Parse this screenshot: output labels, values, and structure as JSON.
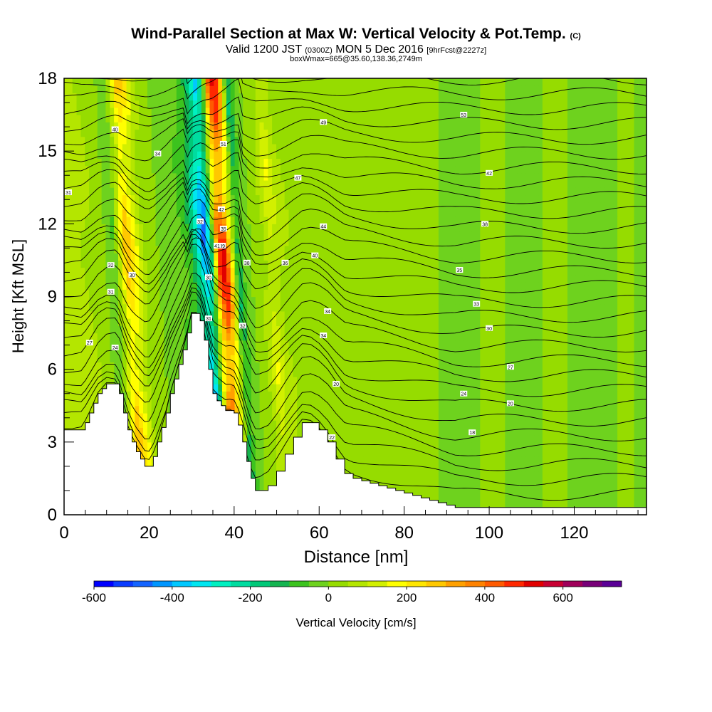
{
  "chart_data": {
    "type": "heatmap",
    "title": "Wind-Parallel Section at Max W: Vertical Velocity & Pot.Temp.",
    "title_mark": "(C)",
    "subtitle_parts": [
      "Valid 1200 JST",
      "(0300Z)",
      "MON 5 Dec 2016",
      "[9hrFcst@2227z]"
    ],
    "subtitle2": "boxWmax=665@35.60,138.36,2749m",
    "xlabel": "Distance [nm]",
    "ylabel": "Height [Kft MSL]",
    "xlim": [
      0,
      137
    ],
    "ylim": [
      0,
      18
    ],
    "x_ticks": [
      0,
      20,
      40,
      60,
      80,
      100,
      120
    ],
    "y_ticks": [
      0,
      3,
      6,
      9,
      12,
      15,
      18
    ],
    "grid": false,
    "colorbar": {
      "label": "Vertical Velocity [cm/s]",
      "tick_labels": [
        -600,
        -400,
        -200,
        0,
        200,
        400,
        600
      ],
      "range": [
        -600,
        750
      ],
      "step": 50,
      "colors": [
        "#0000ff",
        "#0a3cff",
        "#1464ff",
        "#0096ff",
        "#00c8ff",
        "#00e6f0",
        "#00f0c0",
        "#00dca0",
        "#00c878",
        "#14b450",
        "#3cc31e",
        "#6ed21e",
        "#96dc00",
        "#b4e600",
        "#d2f000",
        "#ffff00",
        "#ffe600",
        "#ffc800",
        "#ffa000",
        "#ff8200",
        "#ff5a00",
        "#ff2800",
        "#e10000",
        "#c80032",
        "#a0005a",
        "#780078",
        "#5a0096"
      ]
    },
    "velocity_columns": [
      {
        "x": 4,
        "w": 100
      },
      {
        "x": 10,
        "w": 0
      },
      {
        "x": 12,
        "w": -60
      },
      {
        "x": 15,
        "w": 320
      },
      {
        "x": 17,
        "w": 200
      },
      {
        "x": 19,
        "w": 60
      },
      {
        "x": 23,
        "w": -10
      },
      {
        "x": 27,
        "w": -40
      },
      {
        "x": 30,
        "w": -120
      },
      {
        "x": 32,
        "w": -330
      },
      {
        "x": 33.5,
        "w": -500
      },
      {
        "x": 35,
        "w": -180
      },
      {
        "x": 36.5,
        "w": 450
      },
      {
        "x": 38,
        "w": 560
      },
      {
        "x": 39.5,
        "w": 250
      },
      {
        "x": 41,
        "w": -160
      },
      {
        "x": 43,
        "w": -20
      },
      {
        "x": 46,
        "w": 30
      },
      {
        "x": 49,
        "w": 160
      },
      {
        "x": 51,
        "w": 80
      },
      {
        "x": 54,
        "w": 40
      },
      {
        "x": 60,
        "w": 0
      },
      {
        "x": 65,
        "w": 30
      },
      {
        "x": 75,
        "w": 10
      },
      {
        "x": 85,
        "w": 30
      },
      {
        "x": 93,
        "w": -50
      },
      {
        "x": 100,
        "w": 30
      },
      {
        "x": 108,
        "w": -40
      },
      {
        "x": 115,
        "w": 20
      },
      {
        "x": 125,
        "w": -40
      },
      {
        "x": 132,
        "w": 20
      },
      {
        "x": 137,
        "w": -40
      }
    ],
    "terrain": [
      [
        0,
        3.5
      ],
      [
        4,
        3.5
      ],
      [
        5,
        3.8
      ],
      [
        6,
        4.2
      ],
      [
        7,
        4.6
      ],
      [
        8,
        5.0
      ],
      [
        9,
        5.2
      ],
      [
        10,
        5.4
      ],
      [
        12,
        5.4
      ],
      [
        13,
        5.0
      ],
      [
        14,
        4.2
      ],
      [
        15,
        3.5
      ],
      [
        16,
        3.0
      ],
      [
        17,
        2.6
      ],
      [
        18,
        2.3
      ],
      [
        19,
        2.0
      ],
      [
        20,
        2.0
      ],
      [
        21,
        2.4
      ],
      [
        22,
        3.0
      ],
      [
        23,
        3.6
      ],
      [
        24,
        4.2
      ],
      [
        25,
        5.0
      ],
      [
        26,
        5.6
      ],
      [
        27,
        6.2
      ],
      [
        28,
        6.8
      ],
      [
        29,
        7.5
      ],
      [
        30,
        8.3
      ],
      [
        31,
        8.3
      ],
      [
        32,
        8.0
      ],
      [
        33,
        7.2
      ],
      [
        34,
        6.0
      ],
      [
        35,
        5.0
      ],
      [
        36,
        4.7
      ],
      [
        37,
        4.5
      ],
      [
        38,
        4.3
      ],
      [
        39,
        4.3
      ],
      [
        40,
        4.2
      ],
      [
        41,
        3.7
      ],
      [
        42,
        3.0
      ],
      [
        43,
        2.2
      ],
      [
        44,
        1.5
      ],
      [
        45,
        1.0
      ],
      [
        46,
        1.0
      ],
      [
        48,
        1.2
      ],
      [
        50,
        1.8
      ],
      [
        52,
        2.5
      ],
      [
        54,
        3.2
      ],
      [
        56,
        3.8
      ],
      [
        58,
        3.8
      ],
      [
        60,
        3.5
      ],
      [
        62,
        3.0
      ],
      [
        64,
        2.3
      ],
      [
        66,
        1.7
      ],
      [
        68,
        1.5
      ],
      [
        70,
        1.4
      ],
      [
        72,
        1.3
      ],
      [
        74,
        1.2
      ],
      [
        76,
        1.1
      ],
      [
        78,
        1.0
      ],
      [
        80,
        0.9
      ],
      [
        82,
        0.8
      ],
      [
        84,
        0.7
      ],
      [
        86,
        0.6
      ],
      [
        88,
        0.5
      ],
      [
        90,
        0.4
      ],
      [
        92,
        0.3
      ],
      [
        96,
        0.3
      ],
      [
        104,
        0.3
      ],
      [
        108,
        0.3
      ],
      [
        112,
        0.3
      ],
      [
        120,
        0.3
      ],
      [
        130,
        0.3
      ],
      [
        137,
        0.3
      ]
    ],
    "contour_labels": [
      {
        "text": "40",
        "x": 12,
        "y": 15.9
      },
      {
        "text": "34",
        "x": 22,
        "y": 14.9
      },
      {
        "text": "31",
        "x": 1,
        "y": 13.3
      },
      {
        "text": "32",
        "x": 11,
        "y": 10.3
      },
      {
        "text": "30",
        "x": 16,
        "y": 9.9
      },
      {
        "text": "31",
        "x": 11,
        "y": 9.2
      },
      {
        "text": "27",
        "x": 6,
        "y": 7.1
      },
      {
        "text": "24",
        "x": 12,
        "y": 6.9
      },
      {
        "text": "51",
        "x": 37.5,
        "y": 15.3
      },
      {
        "text": "42",
        "x": 37,
        "y": 12.6
      },
      {
        "text": "32",
        "x": 32,
        "y": 12.1
      },
      {
        "text": "35",
        "x": 37.5,
        "y": 11.8
      },
      {
        "text": "39",
        "x": 37.2,
        "y": 11.1
      },
      {
        "text": "41",
        "x": 36,
        "y": 11.1
      },
      {
        "text": "30",
        "x": 34,
        "y": 9.8
      },
      {
        "text": "38",
        "x": 43,
        "y": 10.4
      },
      {
        "text": "31",
        "x": 34,
        "y": 8.1
      },
      {
        "text": "32",
        "x": 42,
        "y": 7.8
      },
      {
        "text": "49",
        "x": 61,
        "y": 16.2
      },
      {
        "text": "47",
        "x": 55,
        "y": 13.9
      },
      {
        "text": "44",
        "x": 61,
        "y": 11.9
      },
      {
        "text": "40",
        "x": 59,
        "y": 10.7
      },
      {
        "text": "36",
        "x": 52,
        "y": 10.4
      },
      {
        "text": "34",
        "x": 62,
        "y": 8.4
      },
      {
        "text": "34",
        "x": 61,
        "y": 7.4
      },
      {
        "text": "20",
        "x": 64,
        "y": 5.4
      },
      {
        "text": "22",
        "x": 63,
        "y": 3.2
      },
      {
        "text": "53",
        "x": 94,
        "y": 16.5
      },
      {
        "text": "42",
        "x": 100,
        "y": 14.1
      },
      {
        "text": "38",
        "x": 99,
        "y": 12.0
      },
      {
        "text": "35",
        "x": 93,
        "y": 10.1
      },
      {
        "text": "33",
        "x": 97,
        "y": 8.7
      },
      {
        "text": "30",
        "x": 100,
        "y": 7.7
      },
      {
        "text": "27",
        "x": 105,
        "y": 6.1
      },
      {
        "text": "24",
        "x": 94,
        "y": 5.0
      },
      {
        "text": "20",
        "x": 105,
        "y": 4.6
      },
      {
        "text": "18",
        "x": 96,
        "y": 3.4
      }
    ]
  }
}
